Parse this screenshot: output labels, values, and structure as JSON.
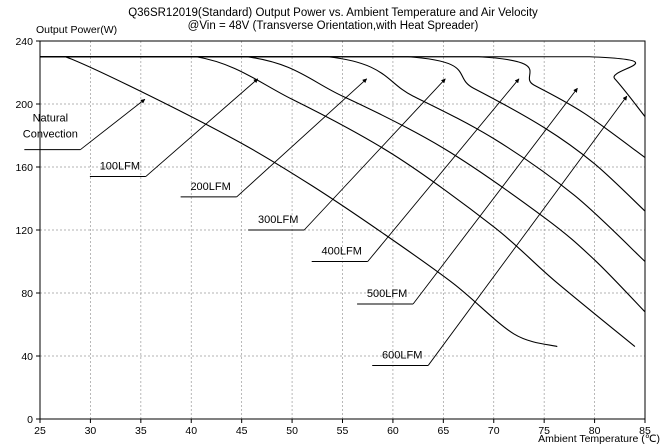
{
  "chart_data": {
    "type": "line",
    "title": "Q36SR12019(Standard) Output Power vs. Ambient Temperature and Air Velocity",
    "subtitle": "@Vin = 48V (Transverse Orientation,with Heat Spreader)",
    "ylabel": "Output Power(W)",
    "xlabel": "Ambient Temperature (℃)",
    "xlim": [
      25,
      85
    ],
    "ylim": [
      0,
      240
    ],
    "xticks": [
      25,
      30,
      35,
      40,
      45,
      50,
      55,
      60,
      65,
      70,
      75,
      80,
      85
    ],
    "yticks": [
      0,
      40,
      80,
      120,
      160,
      200,
      240
    ],
    "grid": "dashed",
    "legend": "none",
    "series": [
      {
        "name": "Natural Convection",
        "x": [
          25,
          27.5,
          35,
          45,
          52,
          59,
          66,
          72,
          76.3
        ],
        "y": [
          230,
          230,
          208,
          175,
          148,
          118,
          86,
          54,
          46
        ]
      },
      {
        "name": "100LFM",
        "x": [
          25,
          40.5,
          50,
          60,
          70,
          76,
          84
        ],
        "y": [
          230,
          230,
          203,
          168,
          122,
          88,
          46
        ]
      },
      {
        "name": "200LFM",
        "x": [
          25,
          45.5,
          55,
          65,
          75,
          80,
          85
        ],
        "y": [
          230,
          230,
          205,
          172,
          128,
          101,
          68
        ]
      },
      {
        "name": "300LFM",
        "x": [
          25,
          53.5,
          62,
          70,
          78,
          85
        ],
        "y": [
          230,
          230,
          205,
          178,
          142,
          100
        ]
      },
      {
        "name": "400LFM",
        "x": [
          25,
          61.5,
          68,
          75,
          80,
          85
        ],
        "y": [
          230,
          230,
          210,
          185,
          162,
          132
        ]
      },
      {
        "name": "500LFM",
        "x": [
          25,
          68.5,
          74,
          79,
          85
        ],
        "y": [
          230,
          230,
          212,
          194,
          166
        ]
      },
      {
        "name": "600LFM",
        "x": [
          25,
          79.5,
          82,
          85
        ],
        "y": [
          230,
          230,
          216,
          192
        ]
      }
    ],
    "annotations": [
      {
        "text": "Natural",
        "line2": "Convection",
        "x": [
          29,
          35.4
        ],
        "y": [
          171,
          203
        ]
      },
      {
        "text": "100LFM",
        "x": [
          35.5,
          46.6
        ],
        "y": [
          154,
          216
        ]
      },
      {
        "text": "200LFM",
        "x": [
          44.5,
          57.4
        ],
        "y": [
          141,
          216
        ]
      },
      {
        "text": "300LFM",
        "x": [
          51.2,
          65.2
        ],
        "y": [
          120,
          216
        ]
      },
      {
        "text": "400LFM",
        "x": [
          57.5,
          72.5
        ],
        "y": [
          100,
          216
        ]
      },
      {
        "text": "500LFM",
        "x": [
          62,
          78.3
        ],
        "y": [
          73,
          210
        ]
      },
      {
        "text": "600LFM",
        "x": [
          63.5,
          83.2
        ],
        "y": [
          34,
          205
        ]
      }
    ]
  }
}
